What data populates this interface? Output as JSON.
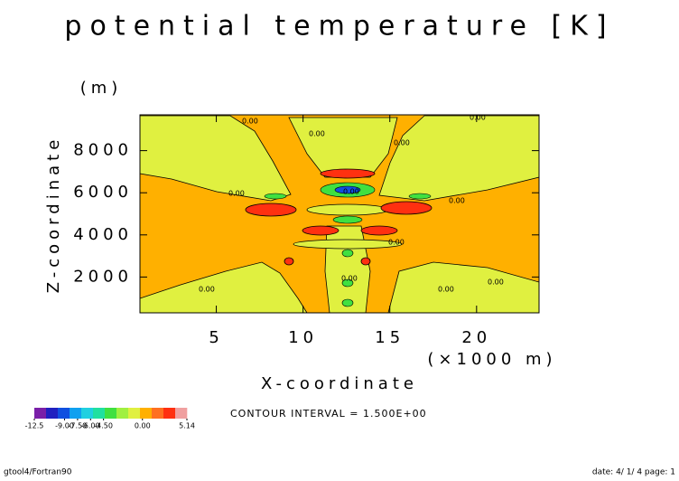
{
  "chart_data": {
    "type": "contour",
    "title": "potential temperature [K]",
    "y_unit": "(m)",
    "y_label": "Z-coordinate",
    "x_label": "X-coordinate",
    "x_unit": "(×1000 m)",
    "xlim": [
      0.6,
      23.6
    ],
    "xticks": [
      5,
      10,
      15,
      20
    ],
    "ylim": [
      300,
      9700
    ],
    "yticks": [
      2000,
      4000,
      6000,
      8000
    ],
    "contour_labels": [
      "0.00",
      "0.00",
      "0.00",
      "0.00",
      "0.00",
      "0.00",
      "0.00",
      "0.00",
      "0.00",
      "0.00",
      "0.00",
      "0.00"
    ],
    "colorbar": {
      "lim": [
        -12.5,
        5.14
      ],
      "colors": [
        "#7a1fa8",
        "#2020c0",
        "#1050e0",
        "#10a0f0",
        "#20d0e0",
        "#20e0a0",
        "#40e040",
        "#a0f040",
        "#e0f040",
        "#ffb000",
        "#ff7020",
        "#ff3010",
        "#f0a0a0"
      ],
      "ticks": [
        {
          "value": -12.5,
          "label": "-12.5"
        },
        {
          "value": -9,
          "label": "-9.00"
        },
        {
          "value": -7.5,
          "label": "-7.50"
        },
        {
          "value": -6,
          "label": "-6.00"
        },
        {
          "value": -4.5,
          "label": "-4.50"
        },
        {
          "value": 0,
          "label": "0.00"
        },
        {
          "value": 5.14,
          "label": "5.14"
        }
      ]
    },
    "contour_interval": "CONTOUR INTERVAL = 1.500E+00",
    "footer_left": "gtool4/Fortran90",
    "footer_right": "date: 4/ 1/ 4 page: 1"
  }
}
